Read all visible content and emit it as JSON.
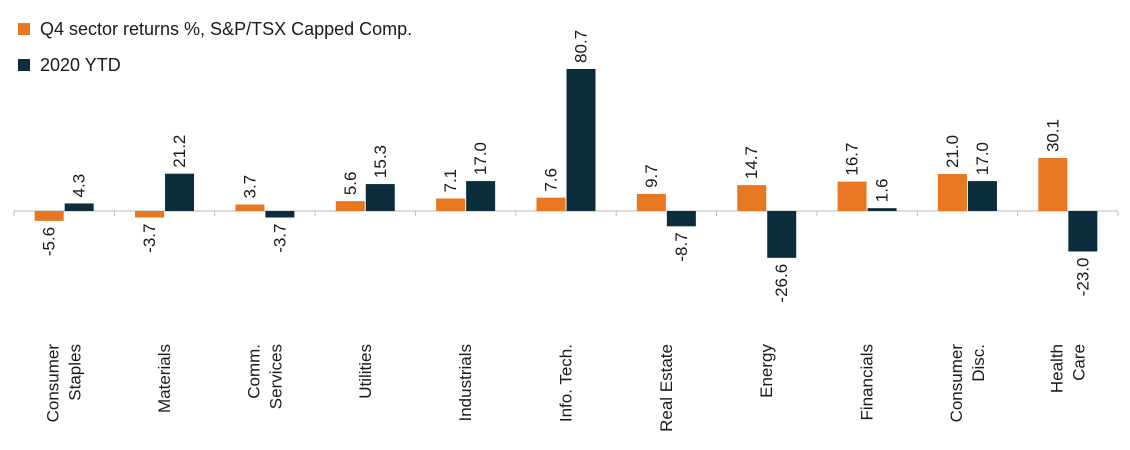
{
  "chart_data": {
    "type": "bar",
    "categories": [
      [
        "Consumer",
        "Staples"
      ],
      [
        "Materials"
      ],
      [
        "Comm.",
        "Services"
      ],
      [
        "Utilities"
      ],
      [
        "Industrials"
      ],
      [
        "Info. Tech."
      ],
      [
        "Real Estate"
      ],
      [
        "Energy"
      ],
      [
        "Financials"
      ],
      [
        "Consumer",
        "Disc."
      ],
      [
        "Health",
        "Care"
      ]
    ],
    "series": [
      {
        "name": "Q4 sector returns %, S&P/TSX Capped Comp.",
        "color": "#E87722",
        "values": [
          -5.6,
          -3.7,
          3.7,
          5.6,
          7.1,
          7.6,
          9.7,
          14.7,
          16.7,
          21.0,
          30.1
        ],
        "labels": [
          "-5.6",
          "-3.7",
          "3.7",
          "5.6",
          "7.1",
          "7.6",
          "9.7",
          "14.7",
          "16.7",
          "21.0",
          "30.1"
        ]
      },
      {
        "name": "2020 YTD",
        "color": "#0B2D3B",
        "values": [
          4.3,
          21.2,
          -3.7,
          15.3,
          17.0,
          80.7,
          -8.7,
          -26.6,
          1.6,
          17.0,
          -23.0
        ],
        "labels": [
          "4.3",
          "21.2",
          "-3.7",
          "15.3",
          "17.0",
          "80.7",
          "-8.7",
          "-26.6",
          "1.6",
          "17.0",
          "-23.0"
        ]
      }
    ],
    "title": "",
    "xlabel": "",
    "ylabel": "",
    "ylim": [
      -30,
      82
    ],
    "grid": false,
    "legend_position": "top-left",
    "axis_color": "#BBBBBB"
  }
}
